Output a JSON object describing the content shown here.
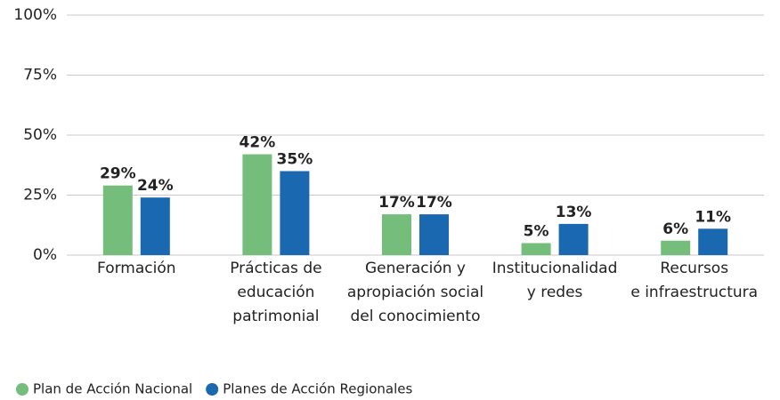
{
  "chart_data": {
    "type": "bar",
    "categories": [
      "Formación",
      "Prácticas de\neducación\npatrimonial",
      "Generación y\napropiación social\ndel conocimiento",
      "Institucionalidad\ny redes",
      "Recursos\ne infraestructura"
    ],
    "series": [
      {
        "name": "Plan de Acción Nacional",
        "color": "#74bd7a",
        "values": [
          29,
          42,
          17,
          5,
          6
        ],
        "value_labels": [
          "29%",
          "42%",
          "17%",
          "5%",
          "6%"
        ]
      },
      {
        "name": "Planes de Acción Regionales",
        "color": "#1a69b0",
        "values": [
          24,
          35,
          17,
          13,
          11
        ],
        "value_labels": [
          "24%",
          "35%",
          "17%",
          "13%",
          "11%"
        ]
      }
    ],
    "ylim": [
      0,
      100
    ],
    "yticks": [
      {
        "value": 0,
        "label": "0%"
      },
      {
        "value": 25,
        "label": "25%"
      },
      {
        "value": 50,
        "label": "50%"
      },
      {
        "value": 75,
        "label": "75%"
      },
      {
        "value": 100,
        "label": "100%"
      }
    ],
    "grid": true,
    "legend": "bottom-left"
  }
}
